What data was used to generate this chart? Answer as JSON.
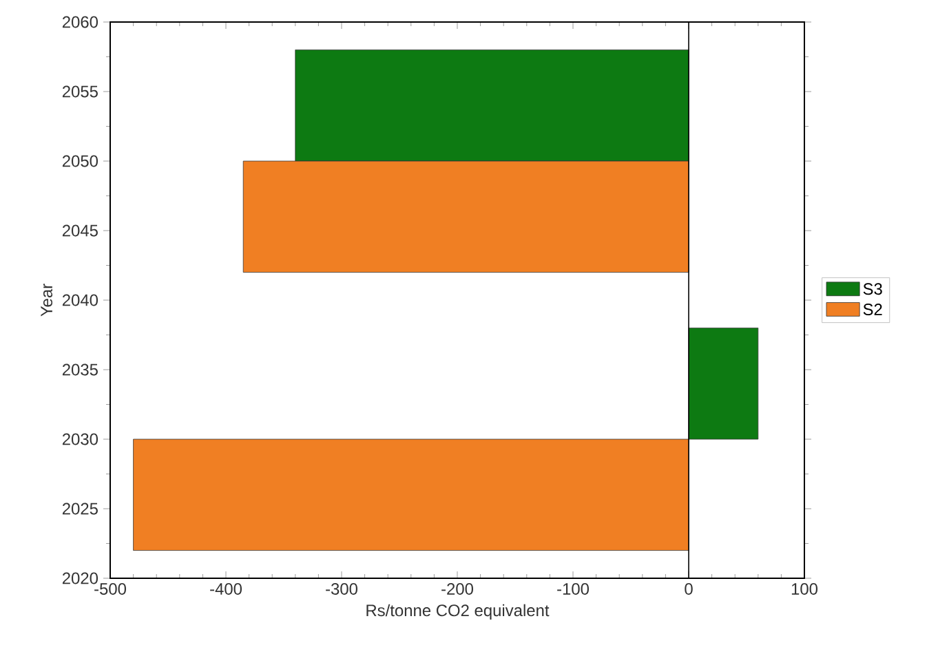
{
  "chart_data": {
    "type": "bar",
    "orientation": "horizontal",
    "xlabel": "Rs/tonne CO2 equivalent",
    "ylabel": "Year",
    "series": [
      {
        "name": "S3",
        "color": "#0d7a12",
        "x": [
          2034,
          2054
        ],
        "values": [
          60,
          -340
        ]
      },
      {
        "name": "S2",
        "color": "#f07f23",
        "x": [
          2026,
          2046
        ],
        "values": [
          -480,
          -385
        ]
      }
    ],
    "xlim": [
      -500,
      100
    ],
    "xticks": [
      -500,
      -400,
      -300,
      -200,
      -100,
      0,
      100
    ],
    "ylim": [
      2020,
      2060
    ],
    "yticks": [
      2020,
      2025,
      2030,
      2035,
      2040,
      2045,
      2050,
      2055,
      2060
    ],
    "ref_lines": [
      {
        "axis": "x",
        "value": 0,
        "color": "#000000"
      }
    ],
    "legend": "right",
    "grid": false
  }
}
